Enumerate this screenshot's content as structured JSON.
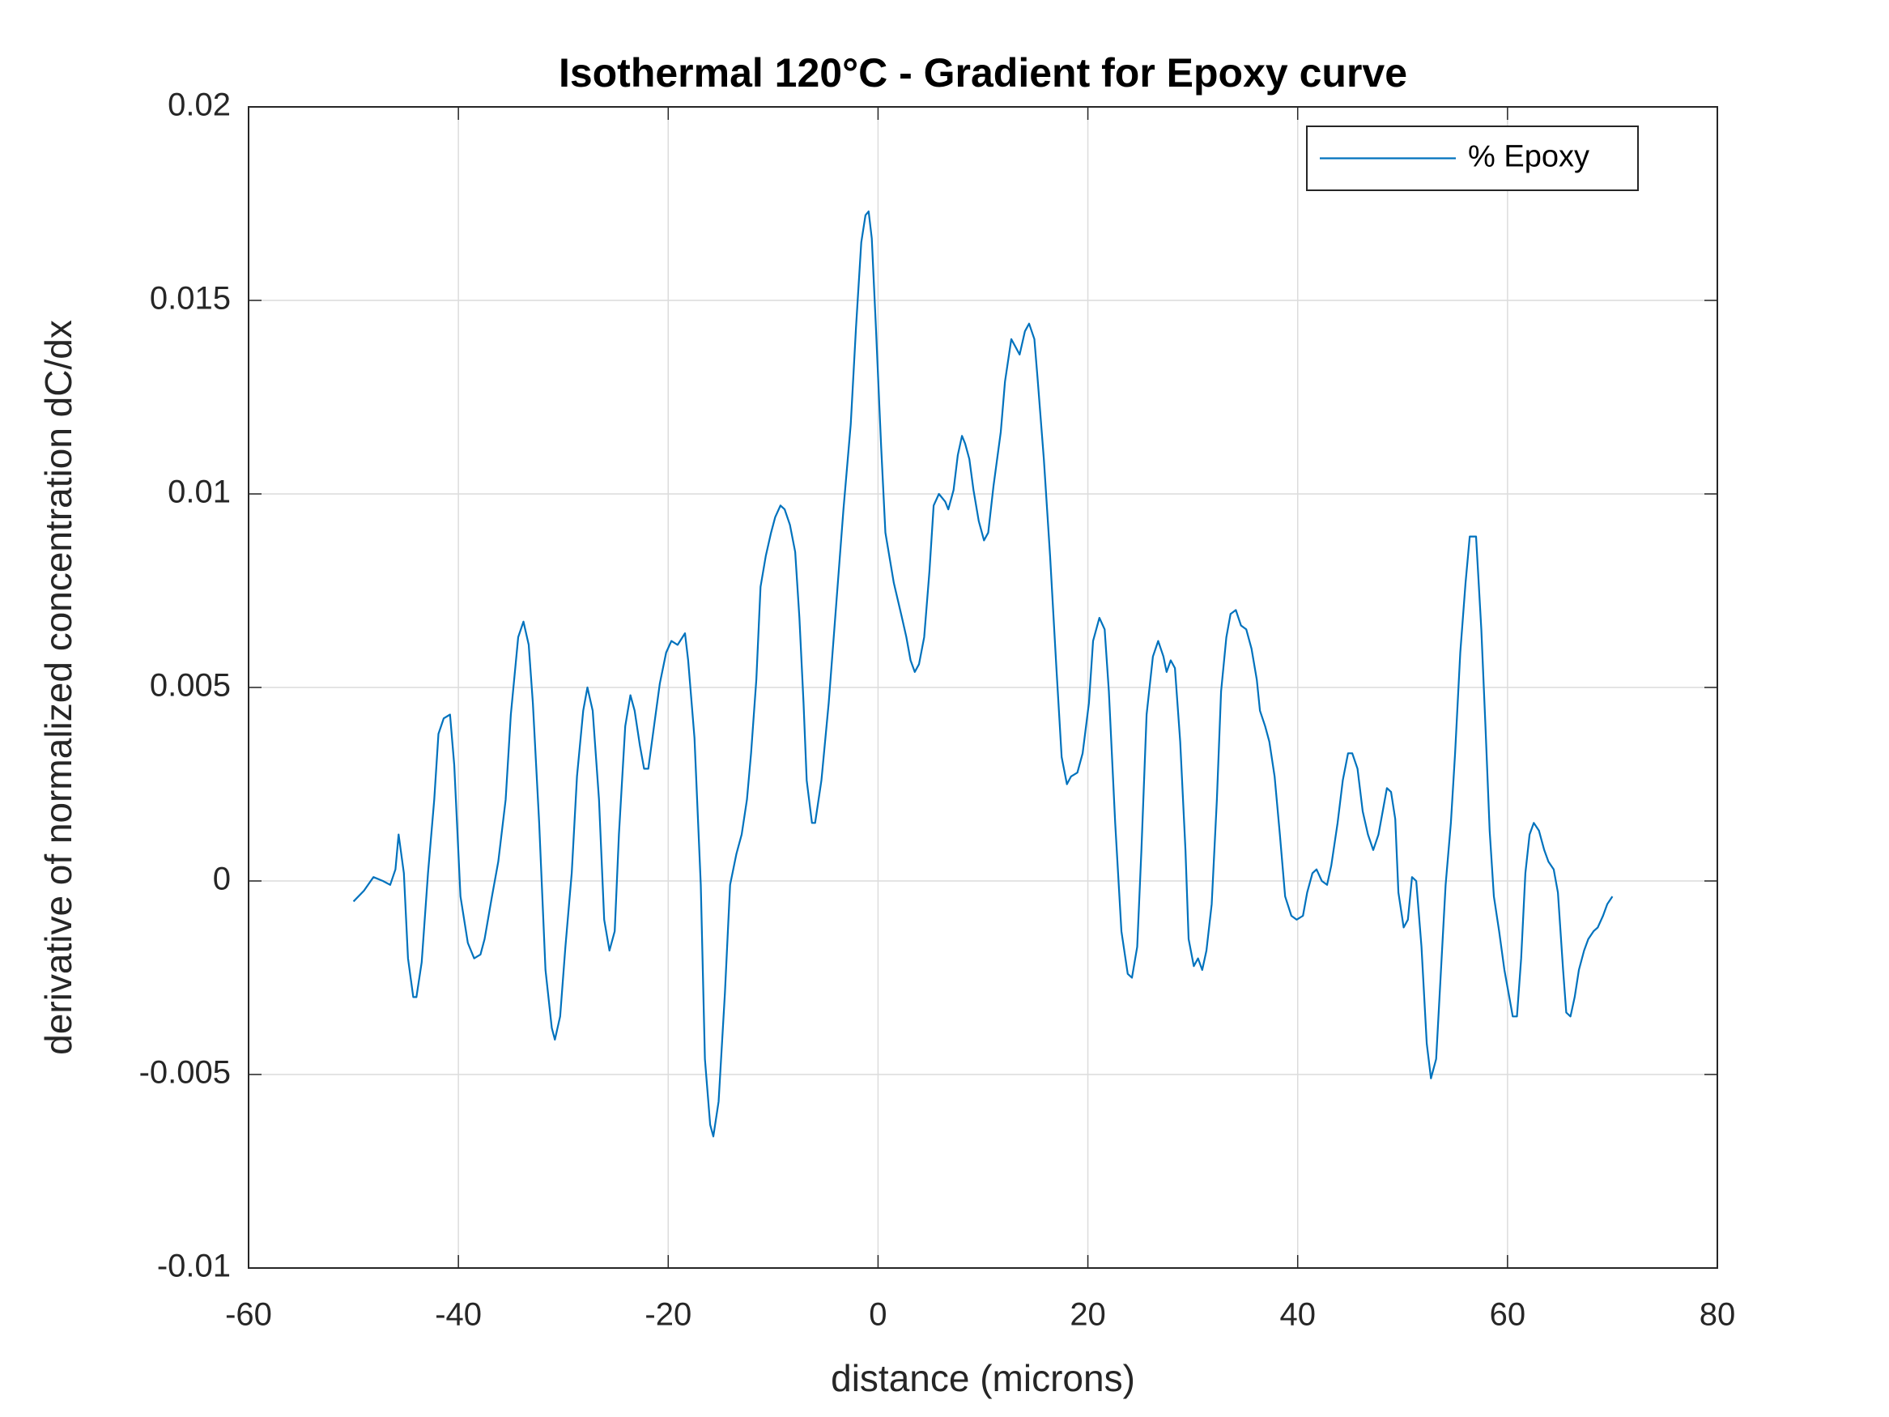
{
  "chart_data": {
    "type": "line",
    "title": "Isothermal 120°C - Gradient for Epoxy curve",
    "xlabel": "distance (microns)",
    "ylabel": "derivative of normalized concentration dC/dx",
    "xlim": [
      -60,
      80
    ],
    "xticks": [
      -60,
      -40,
      -20,
      0,
      20,
      40,
      60,
      80
    ],
    "ylim": [
      -0.01,
      0.02
    ],
    "yticks": [
      -0.01,
      -0.005,
      0,
      0.005,
      0.01,
      0.015,
      0.02
    ],
    "grid": true,
    "legend": "northeast",
    "x": [
      -50.0,
      -49.0,
      -48.1,
      -47.2,
      -46.5,
      -46.0,
      -45.7,
      -45.2,
      -44.8,
      -44.3,
      -44.0,
      -43.5,
      -42.9,
      -42.3,
      -41.9,
      -41.4,
      -40.8,
      -40.4,
      -39.8,
      -39.1,
      -38.5,
      -37.9,
      -37.5,
      -36.8,
      -36.2,
      -35.5,
      -35.0,
      -34.3,
      -33.8,
      -33.3,
      -32.9,
      -32.3,
      -31.7,
      -31.1,
      -30.8,
      -30.3,
      -29.8,
      -29.2,
      -28.7,
      -28.1,
      -27.7,
      -27.2,
      -26.6,
      -26.1,
      -25.6,
      -25.1,
      -24.7,
      -24.1,
      -23.6,
      -23.2,
      -22.7,
      -22.3,
      -21.9,
      -21.3,
      -20.8,
      -20.2,
      -19.7,
      -19.1,
      -18.4,
      -18.1,
      -17.5,
      -16.9,
      -16.5,
      -16.0,
      -15.7,
      -15.2,
      -14.6,
      -14.1,
      -13.5,
      -13.0,
      -12.5,
      -12.1,
      -11.6,
      -11.2,
      -10.7,
      -10.2,
      -9.8,
      -9.3,
      -8.9,
      -8.4,
      -7.9,
      -7.5,
      -7.1,
      -6.8,
      -6.3,
      -6.0,
      -5.4,
      -4.7,
      -4.0,
      -3.3,
      -2.6,
      -2.1,
      -1.6,
      -1.2,
      -0.9,
      -0.6,
      -0.2,
      0.3,
      0.7,
      1.5,
      2.2,
      2.7,
      3.1,
      3.5,
      3.9,
      4.4,
      4.9,
      5.3,
      5.8,
      6.4,
      6.7,
      7.2,
      7.6,
      8.0,
      8.3,
      8.7,
      9.1,
      9.6,
      10.1,
      10.5,
      11.0,
      11.7,
      12.1,
      12.7,
      13.1,
      13.5,
      14.0,
      14.4,
      14.9,
      15.2,
      15.8,
      16.4,
      17.0,
      17.5,
      18.0,
      18.4,
      19.0,
      19.5,
      20.1,
      20.5,
      21.1,
      21.6,
      22.0,
      22.6,
      23.2,
      23.8,
      24.2,
      24.7,
      25.1,
      25.6,
      26.2,
      26.7,
      27.2,
      27.5,
      27.9,
      28.3,
      28.8,
      29.3,
      29.6,
      30.1,
      30.5,
      30.9,
      31.3,
      31.8,
      32.3,
      32.7,
      33.2,
      33.6,
      34.1,
      34.6,
      35.1,
      35.6,
      36.1,
      36.4,
      36.9,
      37.3,
      37.8,
      38.3,
      38.8,
      39.4,
      39.9,
      40.5,
      40.9,
      41.4,
      41.8,
      42.3,
      42.8,
      43.2,
      43.8,
      44.3,
      44.8,
      45.2,
      45.7,
      46.2,
      46.7,
      47.2,
      47.7,
      48.1,
      48.5,
      48.9,
      49.3,
      49.6,
      50.1,
      50.5,
      50.9,
      51.3,
      51.8,
      52.3,
      52.7,
      53.2,
      53.6,
      54.1,
      54.6,
      55.0,
      55.5,
      56.0,
      56.4,
      57.0,
      57.5,
      57.9,
      58.3,
      58.7,
      59.2,
      59.7,
      60.1,
      60.5,
      60.9,
      61.3,
      61.7,
      62.1,
      62.5,
      63.0,
      63.5,
      63.9,
      64.4,
      64.8,
      65.3,
      65.6,
      66.0,
      66.4,
      66.8,
      67.3,
      67.7,
      68.2,
      68.6,
      69.1,
      69.5,
      70.0
    ],
    "series": [
      {
        "name": "% Epoxy",
        "color": "#0072bd",
        "values": [
          -0.00053,
          -0.00025,
          0.0001,
          0,
          -0.0001,
          0.0003,
          0.0012,
          0.0002,
          -0.002,
          -0.003,
          -0.003,
          -0.0021,
          0.0002,
          0.0021,
          0.0038,
          0.0042,
          0.0043,
          0.003,
          -0.0004,
          -0.0016,
          -0.002,
          -0.0019,
          -0.0015,
          -0.0004,
          0.0005,
          0.0021,
          0.0043,
          0.0063,
          0.0067,
          0.0061,
          0.0046,
          0.0015,
          -0.0023,
          -0.0038,
          -0.0041,
          -0.0035,
          -0.0017,
          0.0002,
          0.0027,
          0.0044,
          0.005,
          0.0044,
          0.0021,
          -0.001,
          -0.0018,
          -0.0013,
          0.0012,
          0.004,
          0.0048,
          0.0044,
          0.0035,
          0.0029,
          0.0029,
          0.0041,
          0.0051,
          0.0059,
          0.0062,
          0.0061,
          0.0064,
          0.0057,
          0.0037,
          -0.0001,
          -0.0046,
          -0.0063,
          -0.0066,
          -0.0057,
          -0.0029,
          -0.0001,
          0.0007,
          0.0012,
          0.0021,
          0.0033,
          0.0052,
          0.0076,
          0.0084,
          0.009,
          0.0094,
          0.0097,
          0.0096,
          0.0092,
          0.0085,
          0.0068,
          0.0046,
          0.0026,
          0.0015,
          0.0015,
          0.0026,
          0.0046,
          0.0071,
          0.0096,
          0.0118,
          0.0143,
          0.0165,
          0.0172,
          0.0173,
          0.0166,
          0.0143,
          0.0112,
          0.009,
          0.0077,
          0.0069,
          0.0063,
          0.0057,
          0.0054,
          0.0056,
          0.0063,
          0.008,
          0.0097,
          0.01,
          0.0098,
          0.0096,
          0.0101,
          0.011,
          0.0115,
          0.0113,
          0.0109,
          0.0101,
          0.0093,
          0.0088,
          0.009,
          0.0102,
          0.0116,
          0.0129,
          0.014,
          0.0138,
          0.0136,
          0.0142,
          0.0144,
          0.014,
          0.013,
          0.0109,
          0.0084,
          0.0055,
          0.0032,
          0.0025,
          0.0027,
          0.0028,
          0.0033,
          0.0046,
          0.0062,
          0.0068,
          0.0065,
          0.0049,
          0.0015,
          -0.0013,
          -0.0024,
          -0.0025,
          -0.0017,
          0.0008,
          0.0043,
          0.0058,
          0.0062,
          0.0058,
          0.0054,
          0.0057,
          0.0055,
          0.0036,
          0.0008,
          -0.0015,
          -0.0022,
          -0.002,
          -0.0023,
          -0.0018,
          -0.0006,
          0.0021,
          0.0049,
          0.0063,
          0.0069,
          0.007,
          0.0066,
          0.0065,
          0.006,
          0.0052,
          0.0044,
          0.004,
          0.0036,
          0.0027,
          0.0012,
          -0.0004,
          -0.0009,
          -0.001,
          -0.0009,
          -0.0003,
          0.0002,
          0.0003,
          0,
          -0.0001,
          0.0004,
          0.0015,
          0.0026,
          0.0033,
          0.0033,
          0.0029,
          0.0018,
          0.0012,
          0.0008,
          0.0012,
          0.0018,
          0.0024,
          0.0023,
          0.0016,
          -0.0003,
          -0.0012,
          -0.001,
          0.0001,
          0,
          -0.0017,
          -0.0042,
          -0.0051,
          -0.0046,
          -0.0026,
          -0.0001,
          0.0015,
          0.0033,
          0.0059,
          0.0077,
          0.0089,
          0.0089,
          0.0065,
          0.004,
          0.0013,
          -0.0004,
          -0.0013,
          -0.0023,
          -0.0029,
          -0.0035,
          -0.0035,
          -0.002,
          0.0002,
          0.0012,
          0.0015,
          0.0013,
          0.0008,
          0.0005,
          0.0003,
          -0.0003,
          -0.0023,
          -0.0034,
          -0.0035,
          -0.003,
          -0.0023,
          -0.0018,
          -0.0015,
          -0.0013,
          -0.0012,
          -0.0009,
          -0.0006,
          -0.0004
        ]
      }
    ]
  }
}
